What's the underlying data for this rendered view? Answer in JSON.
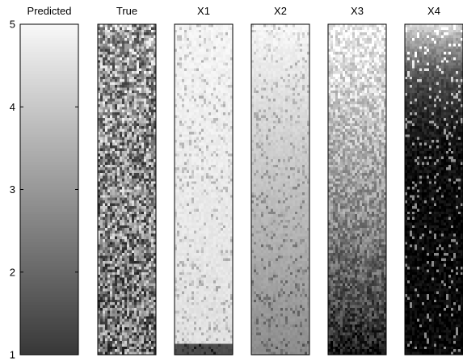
{
  "chart_data": {
    "type": "heatmap",
    "colormap": "grayscale (dark = low, light = high)",
    "shared_y_axis": {
      "ticks": [
        1,
        2,
        3,
        4,
        5
      ],
      "tick_labels": [
        "1",
        "2",
        "3",
        "4",
        "5"
      ],
      "range": [
        1,
        5
      ]
    },
    "panels": [
      {
        "title": "Predicted",
        "pattern": "smooth vertical gradient, dark at 1 to near-white at 5",
        "noise": 0.0,
        "bottom_brightness": 0.22,
        "top_brightness": 0.97
      },
      {
        "title": "True",
        "pattern": "noisy grey speckle, slightly darker toward the bottom",
        "noise": 0.75,
        "bottom_brightness": 0.45,
        "top_brightness": 0.62
      },
      {
        "title": "X1",
        "pattern": "mostly white with sparse grey speckles, dark band at bottom",
        "noise": 0.18,
        "bottom_brightness": 0.88,
        "top_brightness": 0.96
      },
      {
        "title": "X2",
        "pattern": "light speckle, greying toward the bottom",
        "noise": 0.2,
        "bottom_brightness": 0.55,
        "top_brightness": 0.97
      },
      {
        "title": "X3",
        "pattern": "white at top fading to black at bottom, speckled",
        "noise": 0.35,
        "bottom_brightness": 0.05,
        "top_brightness": 0.95
      },
      {
        "title": "X4",
        "pattern": "light only at the very top, mostly dark with white speckles",
        "noise": 0.45,
        "bottom_brightness": 0.04,
        "top_brightness": 0.85
      }
    ]
  }
}
